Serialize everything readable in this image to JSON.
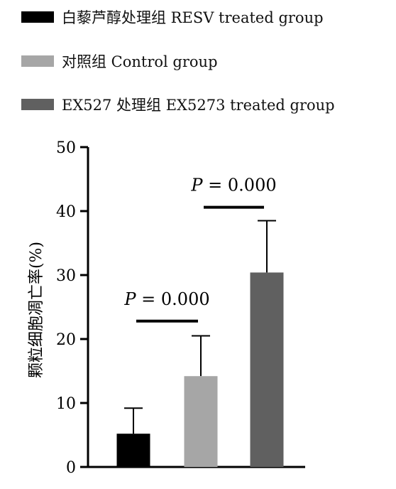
{
  "chart_data": {
    "type": "bar",
    "ylabel": "颗粒细胞凋亡率(%)",
    "ylim": [
      0,
      50
    ],
    "yticks": [
      0,
      10,
      20,
      30,
      40,
      50
    ],
    "grid": false,
    "legend_position": "top",
    "series": [
      {
        "name": "白藜芦醇处理组 RESV treated group",
        "value": 5.2,
        "error": 4.0,
        "color": "#000000"
      },
      {
        "name": "对照组 Control group",
        "value": 14.2,
        "error": 6.3,
        "color": "#a6a6a6"
      },
      {
        "name": "EX527 处理组 EX5273 treated group",
        "value": 30.4,
        "error": 8.1,
        "color": "#606060"
      }
    ],
    "annotations": [
      {
        "text": "P = 0.000",
        "between": [
          0,
          1
        ],
        "y": 22.8
      },
      {
        "text": "P = 0.000",
        "between": [
          1,
          2
        ],
        "y": 40.6
      }
    ]
  }
}
